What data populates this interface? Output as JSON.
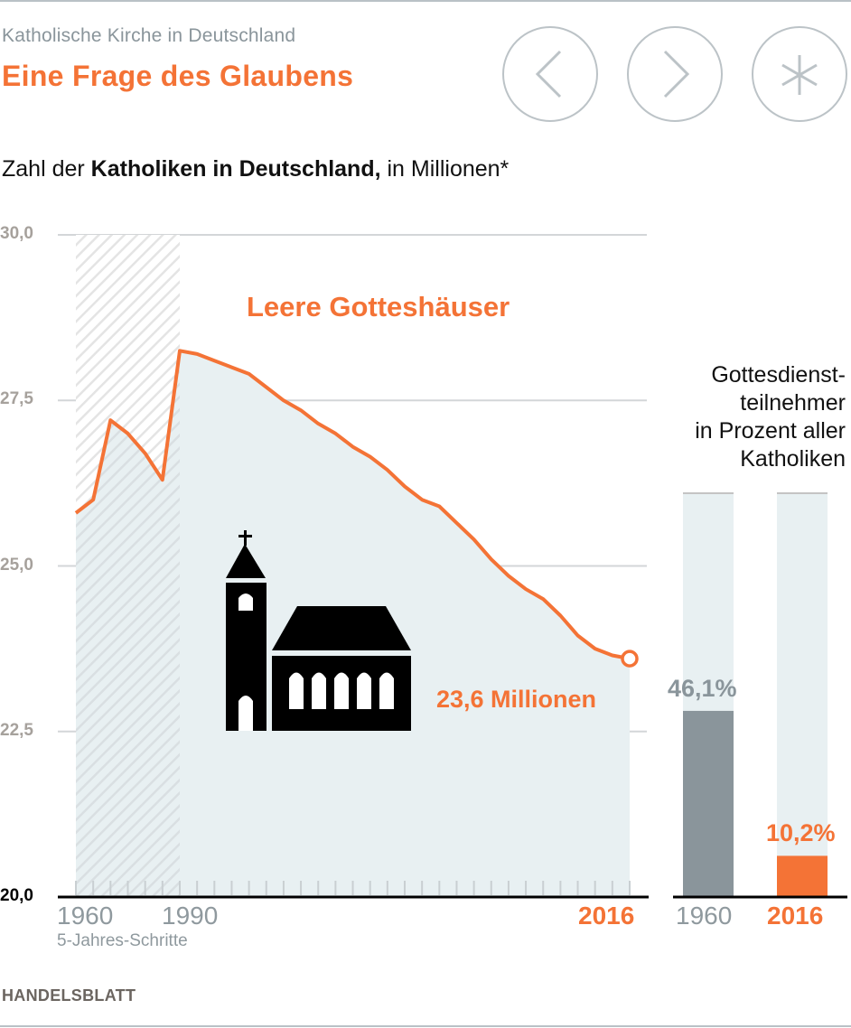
{
  "header": {
    "kicker": "Katholische Kirche in Deutschland",
    "headline": "Eine Frage des Glaubens",
    "nav": [
      {
        "icon": "chevron-left-icon",
        "label": "Zurück"
      },
      {
        "icon": "chevron-right-icon",
        "label": "Weiter"
      },
      {
        "icon": "asterisk-icon",
        "label": "Anmerkung"
      }
    ]
  },
  "subtitle": {
    "prefix": "Zahl der ",
    "bold": "Katholiken in Deutschland,",
    "suffix": " in Millionen*"
  },
  "colors": {
    "accent": "#f47336",
    "area": "#e8f0f2",
    "grid": "#d3d6d8",
    "bar_1960": "#8a959b",
    "bar_bg": "#e8f0f2",
    "church": "#000000"
  },
  "chart_data": [
    {
      "type": "area",
      "title": "Zahl der Katholiken in Deutschland, in Millionen*",
      "annotation": "Leere Gotteshäuser",
      "end_label": "23,6 Millionen",
      "xlabel_note": "5-Jahres-Schritte",
      "hatched_range": [
        1960,
        1990
      ],
      "ylim": [
        20.0,
        30.0
      ],
      "yticks": [
        "30,0",
        "27,5",
        "25,0",
        "22,5",
        "20,0"
      ],
      "ytick_values": [
        30.0,
        27.5,
        25.0,
        22.5,
        20.0
      ],
      "xtick_labels": [
        {
          "year": 1960,
          "label": "1960"
        },
        {
          "year": 1990,
          "label": "1990"
        },
        {
          "year": 2016,
          "label": "2016",
          "highlight": true
        }
      ],
      "grid": true,
      "x": [
        1960,
        1965,
        1970,
        1975,
        1980,
        1985,
        1990,
        1991,
        1992,
        1993,
        1994,
        1995,
        1996,
        1997,
        1998,
        1999,
        2000,
        2001,
        2002,
        2003,
        2004,
        2005,
        2006,
        2007,
        2008,
        2009,
        2010,
        2011,
        2012,
        2013,
        2014,
        2015,
        2016
      ],
      "values": [
        25.8,
        26.0,
        27.2,
        27.0,
        26.7,
        26.3,
        28.25,
        28.2,
        28.1,
        28.0,
        27.9,
        27.7,
        27.5,
        27.35,
        27.15,
        27.0,
        26.8,
        26.65,
        26.45,
        26.2,
        26.0,
        25.9,
        25.65,
        25.4,
        25.1,
        24.85,
        24.65,
        24.5,
        24.25,
        23.95,
        23.75,
        23.65,
        23.6
      ]
    },
    {
      "type": "bar",
      "title": "Gottesdienstteilnehmer in Prozent aller Katholiken",
      "title_lines": [
        "Gottesdienst-",
        "teilnehmer",
        "in Prozent aller",
        "Katholiken"
      ],
      "categories": [
        "1960",
        "2016"
      ],
      "values": [
        46.1,
        10.2
      ],
      "value_labels": [
        "46,1%",
        "10,2%"
      ],
      "ylim": [
        0,
        100
      ]
    }
  ],
  "footer": {
    "source": "HANDELSBLATT"
  }
}
